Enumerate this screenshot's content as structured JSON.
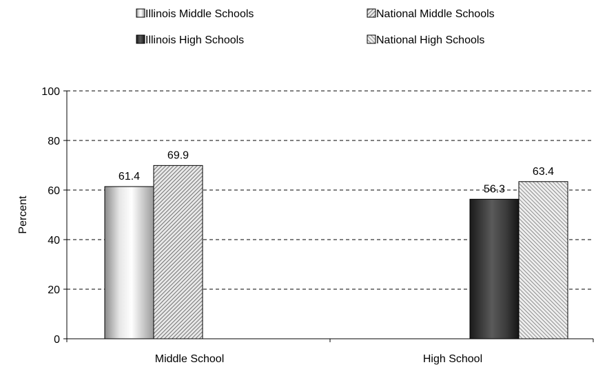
{
  "chart_data": {
    "type": "bar",
    "categories": [
      "Middle School",
      "High School"
    ],
    "series": [
      {
        "name": "Illinois Middle Schools",
        "values": [
          61.4,
          null
        ]
      },
      {
        "name": "National Middle Schools",
        "values": [
          69.9,
          null
        ]
      },
      {
        "name": "Illinois High Schools",
        "values": [
          null,
          56.3
        ]
      },
      {
        "name": "National High Schools",
        "values": [
          null,
          63.4
        ]
      }
    ],
    "data_labels": [
      {
        "series": 0,
        "category": 0,
        "text": "61.4"
      },
      {
        "series": 1,
        "category": 0,
        "text": "69.9"
      },
      {
        "series": 2,
        "category": 1,
        "text": "56.3"
      },
      {
        "series": 3,
        "category": 1,
        "text": "63.4"
      }
    ],
    "ylabel": "Percent",
    "ylim": [
      0,
      100
    ],
    "yticks": [
      "0",
      "20",
      "40",
      "60",
      "80",
      "100"
    ],
    "grid": true,
    "legend_position": "top",
    "colors": {
      "illinois_middle": "#d9d9d9",
      "national_middle": "#c8c8c8",
      "illinois_high": "#404040",
      "national_high": "#c8c8c8",
      "grid": "#000000"
    }
  }
}
